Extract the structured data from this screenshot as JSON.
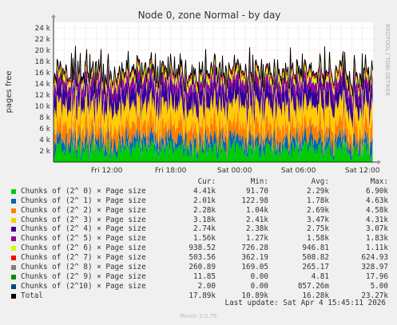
{
  "chart_data": {
    "type": "area",
    "title": "Node 0, zone Normal - by day",
    "ylabel": "pages free",
    "ylim": [
      0,
      25000
    ],
    "yticks": [
      {
        "v": 2000,
        "label": "2 k"
      },
      {
        "v": 4000,
        "label": "4 k"
      },
      {
        "v": 6000,
        "label": "6 k"
      },
      {
        "v": 8000,
        "label": "8 k"
      },
      {
        "v": 10000,
        "label": "10 k"
      },
      {
        "v": 12000,
        "label": "12 k"
      },
      {
        "v": 14000,
        "label": "14 k"
      },
      {
        "v": 16000,
        "label": "16 k"
      },
      {
        "v": 18000,
        "label": "18 k"
      },
      {
        "v": 20000,
        "label": "20 k"
      },
      {
        "v": 22000,
        "label": "22 k"
      },
      {
        "v": 24000,
        "label": "24 k"
      }
    ],
    "x_time_hours": [
      0,
      30
    ],
    "xticks": [
      {
        "t": 5,
        "label": "Fri 12:00"
      },
      {
        "t": 11,
        "label": "Fri 18:00"
      },
      {
        "t": 17,
        "label": "Sat 00:00"
      },
      {
        "t": 23,
        "label": "Sat 06:00"
      },
      {
        "t": 29,
        "label": "Sat 12:00"
      }
    ],
    "series": [
      {
        "name": "Chunks of (2^ 0) × Page size",
        "color": "#00cc00",
        "cur": "4.41k",
        "min": "91.70",
        "avg": "2.29k",
        "max": "6.90k"
      },
      {
        "name": "Chunks of (2^ 1) × Page size",
        "color": "#0066b3",
        "cur": "2.01k",
        "min": "122.98",
        "avg": "1.78k",
        "max": "4.63k"
      },
      {
        "name": "Chunks of (2^ 2) × Page size",
        "color": "#ff8000",
        "cur": "2.28k",
        "min": "1.04k",
        "avg": "2.69k",
        "max": "4.58k"
      },
      {
        "name": "Chunks of (2^ 3) × Page size",
        "color": "#ffcc00",
        "cur": "3.18k",
        "min": "2.41k",
        "avg": "3.47k",
        "max": "4.31k"
      },
      {
        "name": "Chunks of (2^ 4) × Page size",
        "color": "#330099",
        "cur": "2.74k",
        "min": "2.38k",
        "avg": "2.75k",
        "max": "3.07k"
      },
      {
        "name": "Chunks of (2^ 5) × Page size",
        "color": "#990099",
        "cur": "1.56k",
        "min": "1.27k",
        "avg": "1.58k",
        "max": "1.83k"
      },
      {
        "name": "Chunks of (2^ 6) × Page size",
        "color": "#ccff00",
        "cur": "938.52",
        "min": "726.28",
        "avg": "946.81",
        "max": "1.11k"
      },
      {
        "name": "Chunks of (2^ 7) × Page size",
        "color": "#ff0000",
        "cur": "503.56",
        "min": "362.19",
        "avg": "508.82",
        "max": "624.93"
      },
      {
        "name": "Chunks of (2^ 8) × Page size",
        "color": "#808080",
        "cur": "260.89",
        "min": "169.05",
        "avg": "265.17",
        "max": "328.97"
      },
      {
        "name": "Chunks of (2^ 9) × Page size",
        "color": "#008f00",
        "cur": "11.85",
        "min": "0.00",
        "avg": "4.81",
        "max": "17.96"
      },
      {
        "name": "Chunks of (2^10) × Page size",
        "color": "#00487d",
        "cur": "2.00",
        "min": "0.00",
        "avg": "857.26m",
        "max": "5.00"
      }
    ],
    "total": {
      "name": "Total",
      "color": "#000000",
      "cur": "17.89k",
      "min": "10.89k",
      "avg": "16.28k",
      "max": "23.27k"
    },
    "columns": [
      "Cur:",
      "Min:",
      "Avg:",
      "Max:"
    ]
  },
  "last_update": "Last update: Sat Apr  4 15:45:11 2026",
  "side_label": "RRDTOOL / TOBI OETIKER",
  "footer": "Munin 2.0.76"
}
